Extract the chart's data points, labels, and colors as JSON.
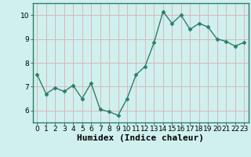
{
  "x": [
    0,
    1,
    2,
    3,
    4,
    5,
    6,
    7,
    8,
    9,
    10,
    11,
    12,
    13,
    14,
    15,
    16,
    17,
    18,
    19,
    20,
    21,
    22,
    23
  ],
  "y": [
    7.5,
    6.7,
    6.95,
    6.8,
    7.05,
    6.5,
    7.15,
    6.05,
    5.95,
    5.8,
    6.5,
    7.5,
    7.85,
    8.85,
    10.15,
    9.65,
    10.0,
    9.4,
    9.65,
    9.5,
    9.0,
    8.9,
    8.7,
    8.85
  ],
  "line_color": "#2e7d6e",
  "marker": "D",
  "marker_size": 2.5,
  "line_width": 1.0,
  "xlabel": "Humidex (Indice chaleur)",
  "xlabel_fontsize": 8,
  "xlim": [
    -0.5,
    23.5
  ],
  "ylim": [
    5.5,
    10.5
  ],
  "yticks": [
    6,
    7,
    8,
    9,
    10
  ],
  "xticks": [
    0,
    1,
    2,
    3,
    4,
    5,
    6,
    7,
    8,
    9,
    10,
    11,
    12,
    13,
    14,
    15,
    16,
    17,
    18,
    19,
    20,
    21,
    22,
    23
  ],
  "background_color": "#cff0ee",
  "grid_color": "#d9b8b8",
  "tick_fontsize": 6.5,
  "spine_color": "#2e7d6e"
}
